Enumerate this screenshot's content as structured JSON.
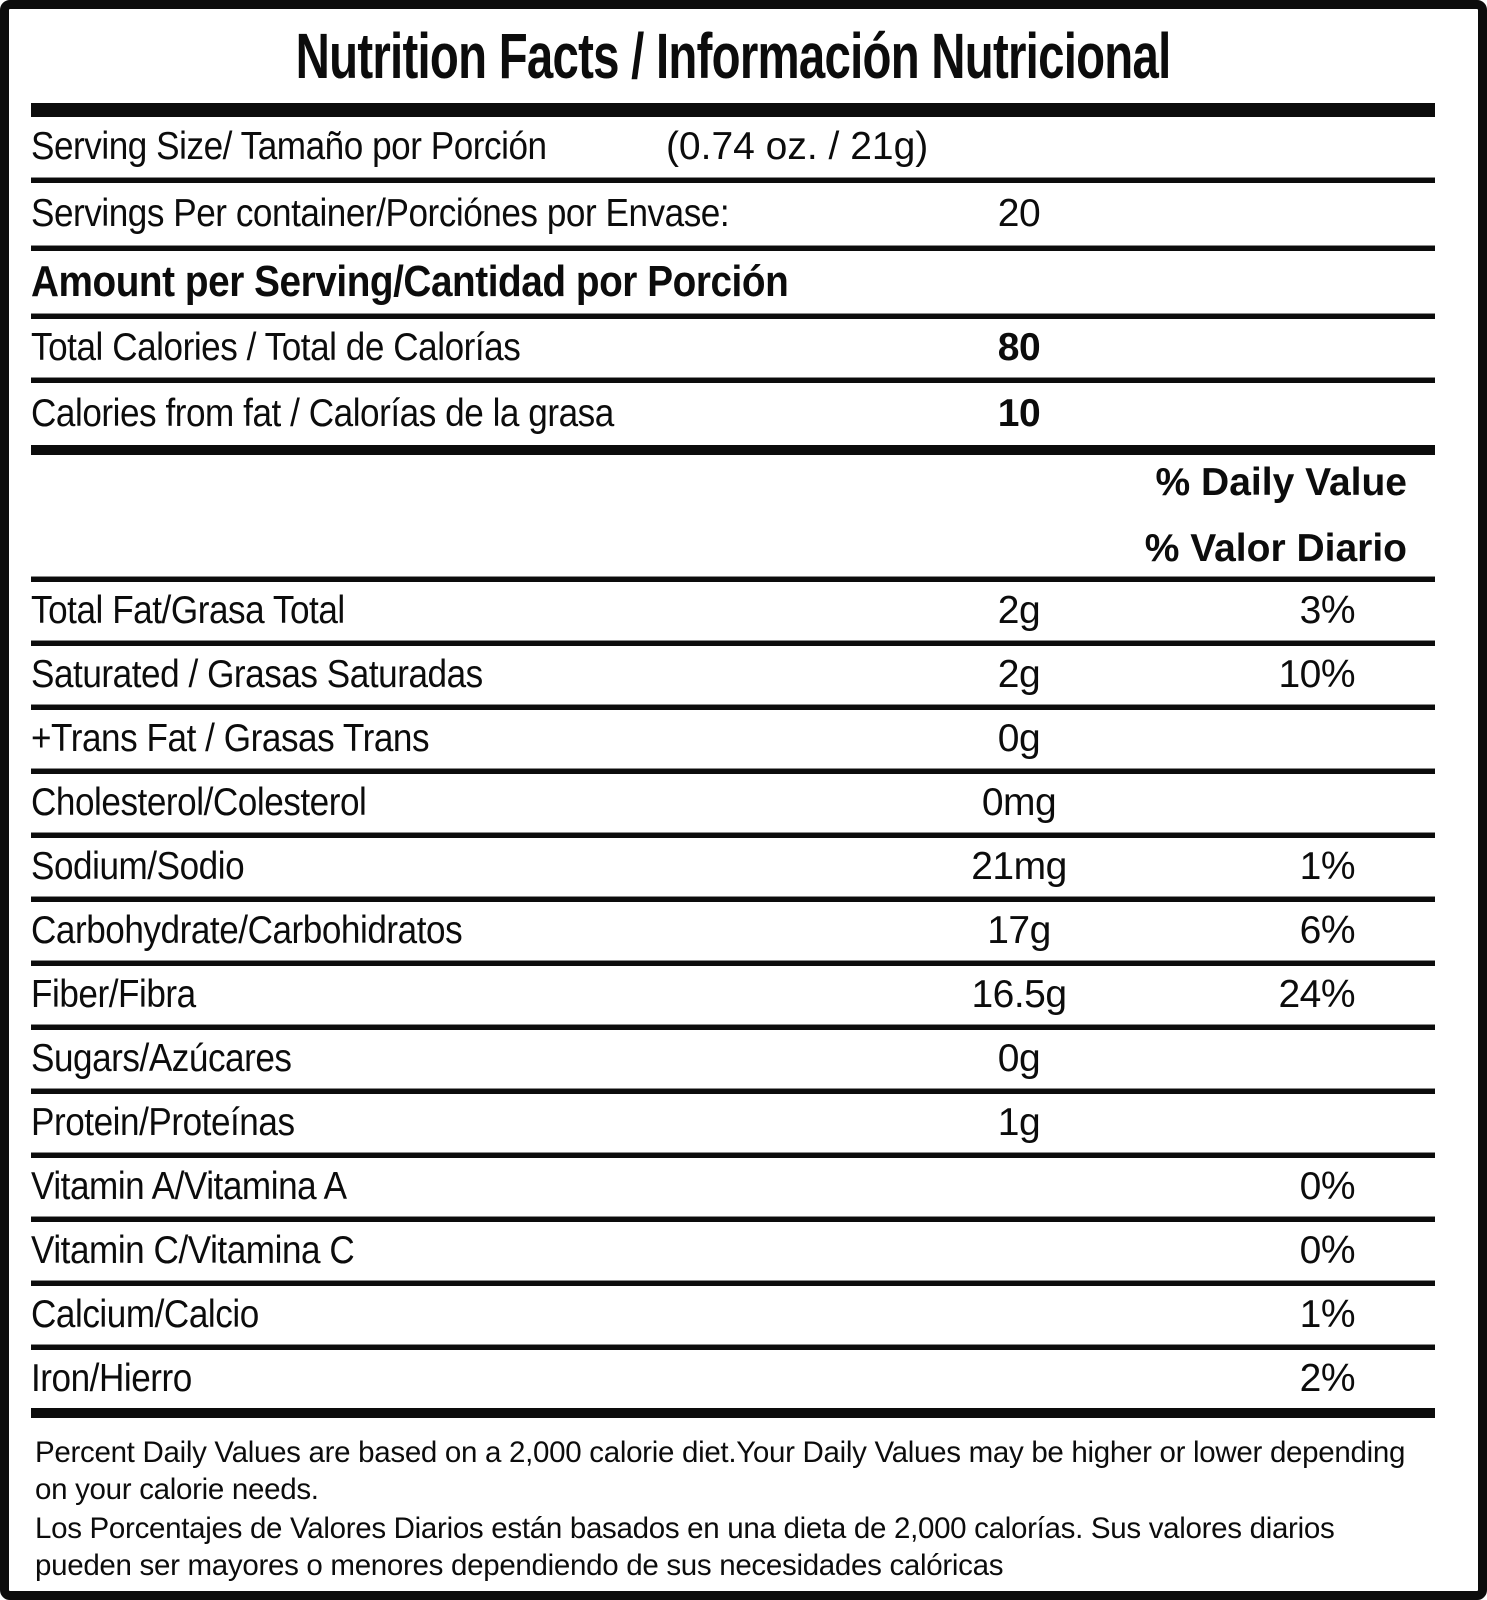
{
  "label": {
    "title": "Nutrition Facts / Información Nutricional",
    "serving_size": {
      "label": "Serving Size/ Tamaño por Porción",
      "value": "(0.74 oz. / 21g)"
    },
    "servings_per_container": {
      "label": "Servings Per container/Porciónes por Envase:",
      "value": "20"
    },
    "amount_per_serving_header": "Amount per Serving/Cantidad por Porción",
    "calories_rows": [
      {
        "label": "Total Calories / Total de Calorías",
        "amount": "80"
      },
      {
        "label": "Calories from fat / Calorías de la grasa",
        "amount": "10"
      }
    ],
    "daily_value_header": {
      "line1": "% Daily Value",
      "line2": "% Valor Diario"
    },
    "nutrients": [
      {
        "label": "Total Fat/Grasa Total",
        "amount": "2g",
        "dv": "3%"
      },
      {
        "label": "Saturated / Grasas Saturadas",
        "amount": "2g",
        "dv": "10%"
      },
      {
        "label": "+Trans Fat / Grasas Trans",
        "amount": "0g",
        "dv": ""
      },
      {
        "label": "Cholesterol/Colesterol",
        "amount": "0mg",
        "dv": ""
      },
      {
        "label": "Sodium/Sodio",
        "amount": "21mg",
        "dv": "1%"
      },
      {
        "label": "Carbohydrate/Carbohidratos",
        "amount": "17g",
        "dv": "6%"
      },
      {
        "label": "Fiber/Fibra",
        "amount": "16.5g",
        "dv": "24%"
      },
      {
        "label": "Sugars/Azúcares",
        "amount": "0g",
        "dv": ""
      },
      {
        "label": "Protein/Proteínas",
        "amount": "1g",
        "dv": ""
      },
      {
        "label": "Vitamin A/Vitamina A",
        "amount": "",
        "dv": "0%"
      },
      {
        "label": "Vitamin C/Vitamina C",
        "amount": "",
        "dv": "0%"
      },
      {
        "label": "Calcium/Calcio",
        "amount": "",
        "dv": "1%"
      },
      {
        "label": "Iron/Hierro",
        "amount": "",
        "dv": "2%"
      }
    ],
    "footnote_en": "Percent Daily Values are based on a 2,000 calorie diet.Your Daily Values may be higher or lower depending on your calorie needs.",
    "footnote_es": "Los Porcentajes de Valores Diarios están basados en una dieta de 2,000 calorías. Sus valores diarios pueden ser mayores o menores dependiendo de sus necesidades calóricas"
  },
  "colors": {
    "text": "#0c0c0c",
    "background": "#ffffff",
    "rule": "#0c0c0c"
  }
}
